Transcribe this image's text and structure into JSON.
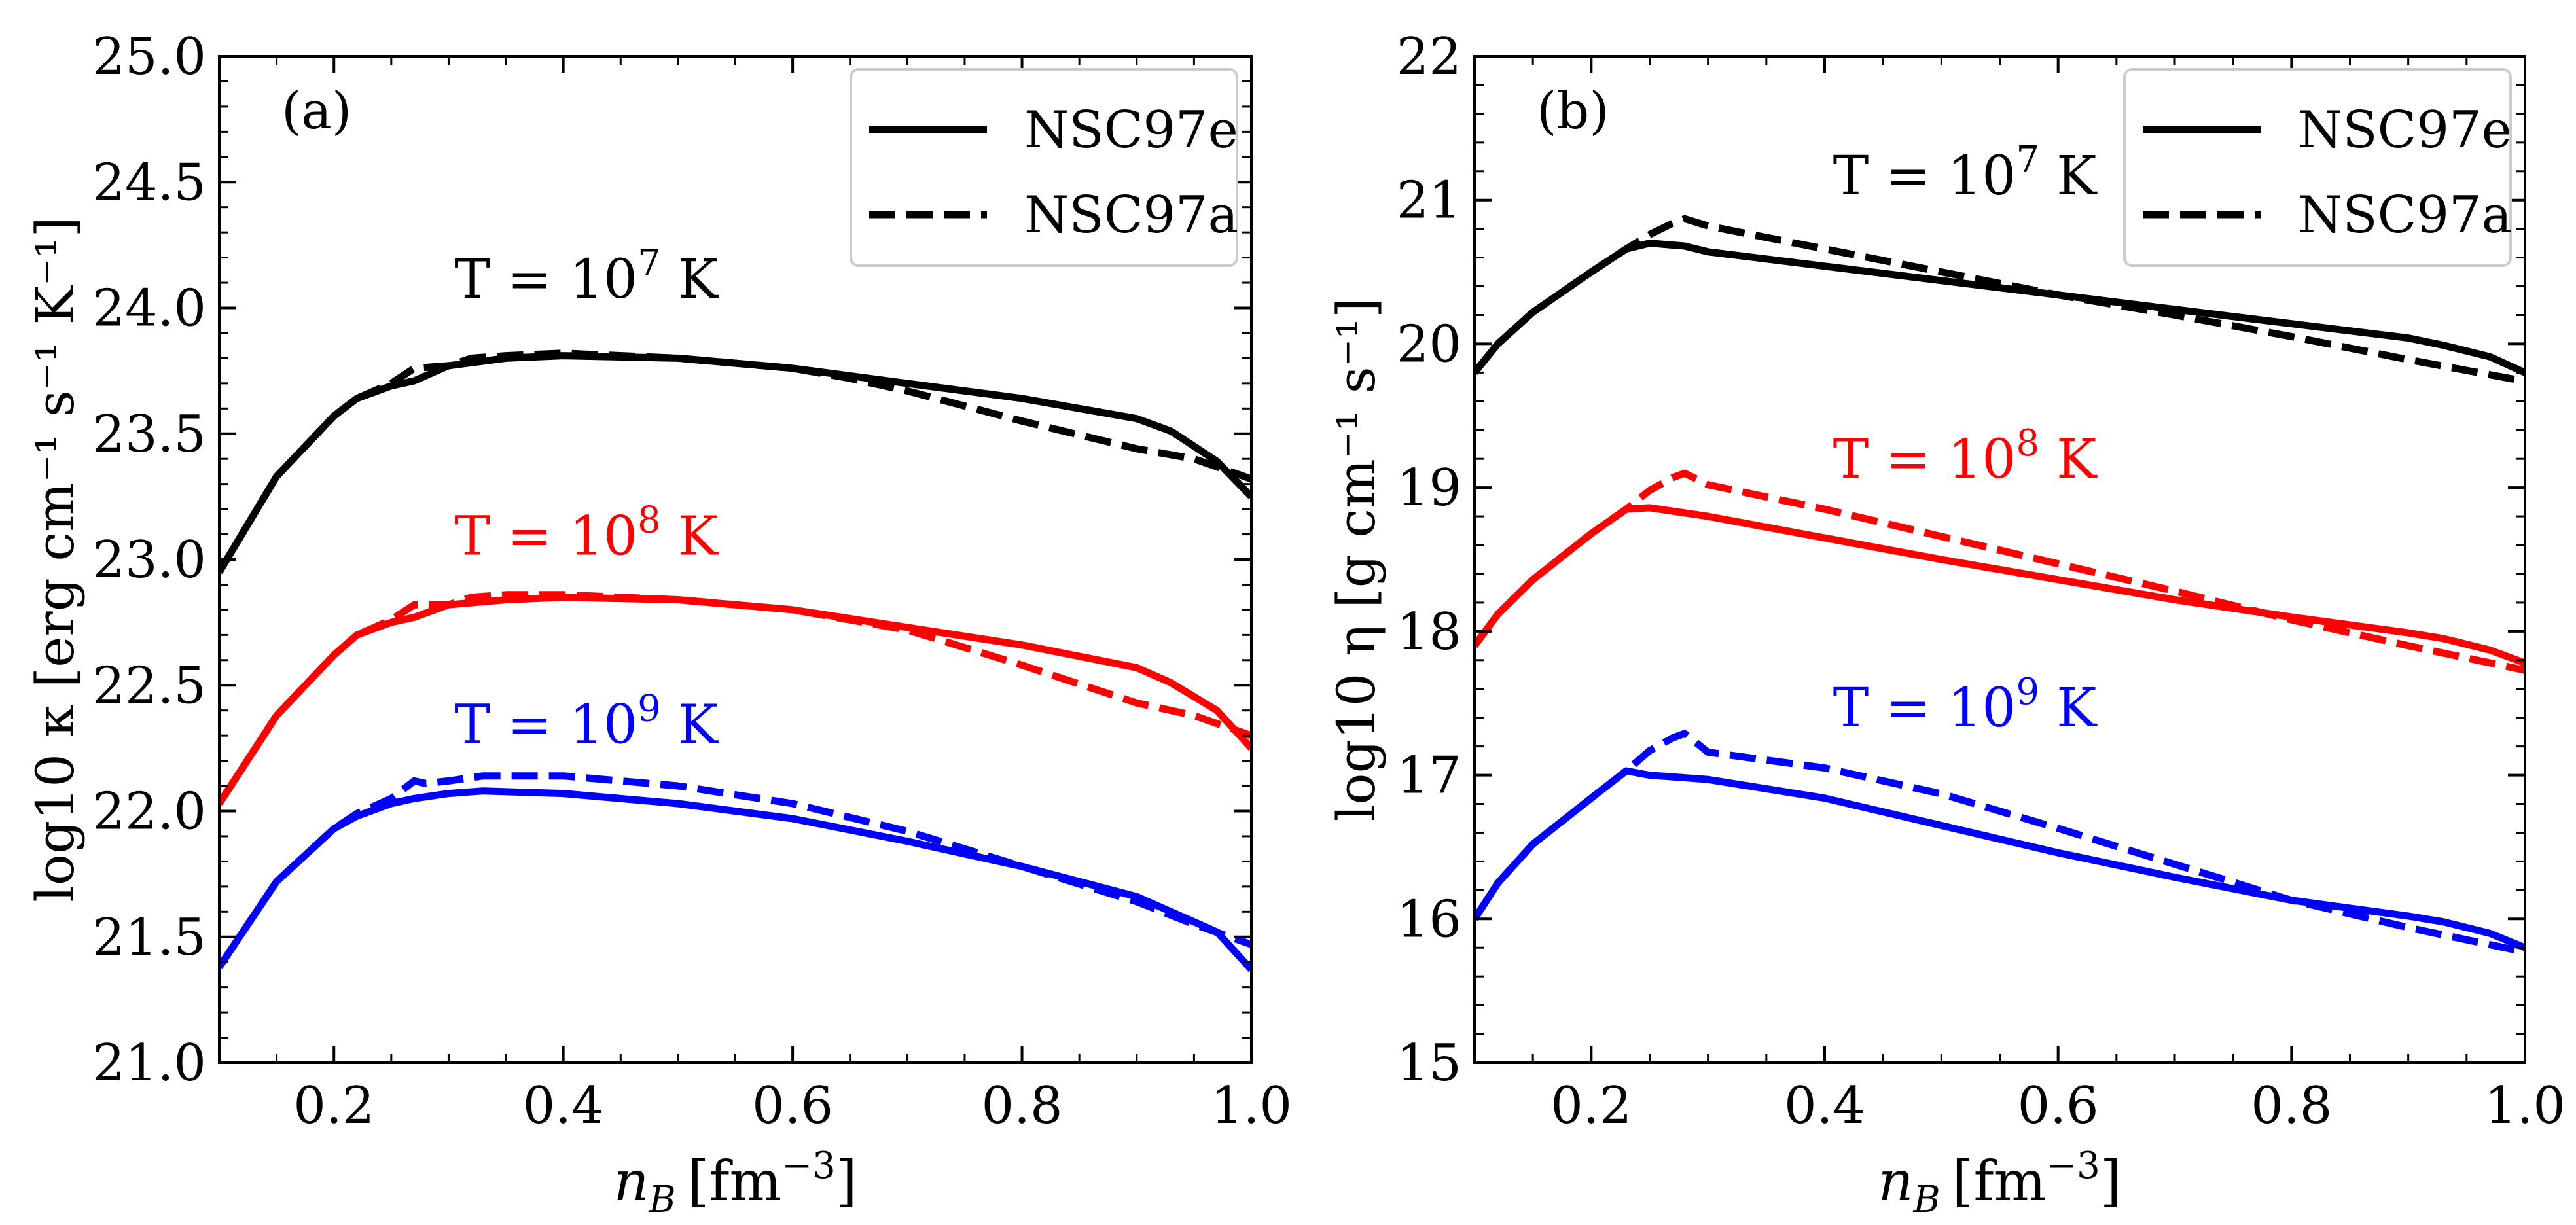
{
  "chart_data": [
    {
      "type": "line",
      "panel_label": "(a)",
      "xlabel_sym": "n",
      "xlabel_sub": "B",
      "xlabel_unit": "[fm",
      "xlabel_unit_exp": "−3",
      "xlabel_unit_close": "]",
      "ylabel": "log10 κ [erg cm⁻¹ s⁻¹ K⁻¹]",
      "xlim": [
        0.1,
        1.0
      ],
      "ylim": [
        21.0,
        25.0
      ],
      "xticks": [
        "0.2",
        "0.4",
        "0.6",
        "0.8",
        "1.0"
      ],
      "xtick_values": [
        0.2,
        0.4,
        0.6,
        0.8,
        1.0
      ],
      "yticks": [
        "21.0",
        "21.5",
        "22.0",
        "22.5",
        "23.0",
        "23.5",
        "24.0",
        "24.5",
        "25.0"
      ],
      "ytick_values": [
        21.0,
        21.5,
        22.0,
        22.5,
        23.0,
        23.5,
        24.0,
        24.5,
        25.0
      ],
      "legend": [
        "NSC97e",
        "NSC97a"
      ],
      "legend_position": "top-right",
      "annotations": [
        {
          "prefix": "T = 10",
          "exp": "7",
          "suffix": " K",
          "color": "#000000",
          "x": 0.42,
          "y": 24.04
        },
        {
          "prefix": "T = 10",
          "exp": "8",
          "suffix": " K",
          "color": "#ff0000",
          "x": 0.42,
          "y": 23.02
        },
        {
          "prefix": "T = 10",
          "exp": "9",
          "suffix": " K",
          "color": "#0000ff",
          "x": 0.42,
          "y": 22.27
        }
      ],
      "series": [
        {
          "name": "NSC97e",
          "temperature": "1e7 K",
          "color": "#000000",
          "dash": "solid",
          "x": [
            0.1,
            0.15,
            0.2,
            0.22,
            0.25,
            0.27,
            0.3,
            0.35,
            0.4,
            0.5,
            0.6,
            0.7,
            0.8,
            0.9,
            0.93,
            0.97,
            1.0
          ],
          "y": [
            22.95,
            23.33,
            23.57,
            23.64,
            23.69,
            23.71,
            23.77,
            23.8,
            23.81,
            23.8,
            23.76,
            23.7,
            23.64,
            23.56,
            23.51,
            23.39,
            23.25
          ]
        },
        {
          "name": "NSC97a",
          "temperature": "1e7 K",
          "color": "#000000",
          "dash": "dashed",
          "x": [
            0.1,
            0.15,
            0.2,
            0.22,
            0.25,
            0.27,
            0.3,
            0.32,
            0.35,
            0.4,
            0.5,
            0.6,
            0.65,
            0.7,
            0.8,
            0.9,
            0.95,
            1.0
          ],
          "y": [
            22.95,
            23.33,
            23.57,
            23.64,
            23.7,
            23.76,
            23.77,
            23.8,
            23.81,
            23.82,
            23.8,
            23.76,
            23.72,
            23.67,
            23.55,
            23.44,
            23.4,
            23.32
          ]
        },
        {
          "name": "NSC97e",
          "temperature": "1e8 K",
          "color": "#ff0000",
          "dash": "solid",
          "x": [
            0.1,
            0.15,
            0.2,
            0.22,
            0.25,
            0.27,
            0.3,
            0.35,
            0.4,
            0.5,
            0.6,
            0.7,
            0.8,
            0.9,
            0.93,
            0.97,
            1.0
          ],
          "y": [
            22.03,
            22.38,
            22.62,
            22.7,
            22.75,
            22.77,
            22.82,
            22.84,
            22.85,
            22.84,
            22.8,
            22.73,
            22.66,
            22.57,
            22.51,
            22.4,
            22.25
          ]
        },
        {
          "name": "NSC97a",
          "temperature": "1e8 K",
          "color": "#ff0000",
          "dash": "dashed",
          "x": [
            0.1,
            0.15,
            0.2,
            0.22,
            0.25,
            0.27,
            0.3,
            0.32,
            0.35,
            0.4,
            0.5,
            0.6,
            0.7,
            0.8,
            0.9,
            0.95,
            1.0
          ],
          "y": [
            22.03,
            22.38,
            22.62,
            22.7,
            22.76,
            22.82,
            22.82,
            22.85,
            22.86,
            22.86,
            22.84,
            22.8,
            22.72,
            22.58,
            22.43,
            22.38,
            22.3
          ]
        },
        {
          "name": "NSC97e",
          "temperature": "1e9 K",
          "color": "#0000ff",
          "dash": "solid",
          "x": [
            0.1,
            0.15,
            0.2,
            0.22,
            0.25,
            0.27,
            0.3,
            0.33,
            0.4,
            0.5,
            0.6,
            0.7,
            0.8,
            0.9,
            0.93,
            0.97,
            1.0
          ],
          "y": [
            21.38,
            21.72,
            21.93,
            21.98,
            22.03,
            22.05,
            22.07,
            22.08,
            22.07,
            22.03,
            21.97,
            21.88,
            21.78,
            21.66,
            21.6,
            21.52,
            21.37
          ]
        },
        {
          "name": "NSC97a",
          "temperature": "1e9 K",
          "color": "#0000ff",
          "dash": "dashed",
          "x": [
            0.1,
            0.15,
            0.2,
            0.22,
            0.25,
            0.27,
            0.28,
            0.3,
            0.33,
            0.4,
            0.5,
            0.6,
            0.7,
            0.8,
            0.9,
            0.95,
            1.0
          ],
          "y": [
            21.38,
            21.72,
            21.93,
            21.99,
            22.05,
            22.12,
            22.11,
            22.12,
            22.14,
            22.14,
            22.1,
            22.03,
            21.92,
            21.78,
            21.64,
            21.55,
            21.47
          ]
        }
      ]
    },
    {
      "type": "line",
      "panel_label": "(b)",
      "xlabel_sym": "n",
      "xlabel_sub": "B",
      "xlabel_unit": "[fm",
      "xlabel_unit_exp": "−3",
      "xlabel_unit_close": "]",
      "ylabel": "log10 η [g cm⁻¹ s⁻¹]",
      "xlim": [
        0.1,
        1.0
      ],
      "ylim": [
        15.0,
        22.0
      ],
      "xticks": [
        "0.2",
        "0.4",
        "0.6",
        "0.8",
        "1.0"
      ],
      "xtick_values": [
        0.2,
        0.4,
        0.6,
        0.8,
        1.0
      ],
      "yticks": [
        "15",
        "16",
        "17",
        "18",
        "19",
        "20",
        "21",
        "22"
      ],
      "ytick_values": [
        15,
        16,
        17,
        18,
        19,
        20,
        21,
        22
      ],
      "legend": [
        "NSC97e",
        "NSC97a"
      ],
      "legend_position": "top-right",
      "annotations": [
        {
          "prefix": "T = 10",
          "exp": "7",
          "suffix": " K",
          "color": "#000000",
          "x": 0.52,
          "y": 21.04
        },
        {
          "prefix": "T = 10",
          "exp": "8",
          "suffix": " K",
          "color": "#ff0000",
          "x": 0.52,
          "y": 19.07
        },
        {
          "prefix": "T = 10",
          "exp": "9",
          "suffix": " K",
          "color": "#0000ff",
          "x": 0.52,
          "y": 17.34
        }
      ],
      "series": [
        {
          "name": "NSC97e",
          "temperature": "1e7 K",
          "color": "#000000",
          "dash": "solid",
          "x": [
            0.1,
            0.12,
            0.15,
            0.2,
            0.23,
            0.25,
            0.28,
            0.3,
            0.4,
            0.5,
            0.6,
            0.7,
            0.8,
            0.9,
            0.93,
            0.97,
            1.0
          ],
          "y": [
            19.8,
            20.0,
            20.22,
            20.5,
            20.66,
            20.7,
            20.68,
            20.64,
            20.54,
            20.44,
            20.34,
            20.24,
            20.14,
            20.04,
            19.99,
            19.91,
            19.8
          ]
        },
        {
          "name": "NSC97a",
          "temperature": "1e7 K",
          "color": "#000000",
          "dash": "dashed",
          "x": [
            0.1,
            0.12,
            0.15,
            0.2,
            0.23,
            0.25,
            0.27,
            0.28,
            0.3,
            0.4,
            0.5,
            0.6,
            0.7,
            0.8,
            0.9,
            1.0
          ],
          "y": [
            19.8,
            20.0,
            20.22,
            20.5,
            20.66,
            20.76,
            20.84,
            20.87,
            20.82,
            20.66,
            20.5,
            20.34,
            20.2,
            20.05,
            19.89,
            19.74
          ]
        },
        {
          "name": "NSC97e",
          "temperature": "1e8 K",
          "color": "#ff0000",
          "dash": "solid",
          "x": [
            0.1,
            0.12,
            0.15,
            0.2,
            0.23,
            0.25,
            0.3,
            0.4,
            0.5,
            0.6,
            0.7,
            0.8,
            0.9,
            0.93,
            0.97,
            1.0
          ],
          "y": [
            17.9,
            18.12,
            18.36,
            18.68,
            18.85,
            18.86,
            18.8,
            18.65,
            18.5,
            18.36,
            18.22,
            18.1,
            17.99,
            17.95,
            17.87,
            17.78
          ]
        },
        {
          "name": "NSC97a",
          "temperature": "1e8 K",
          "color": "#ff0000",
          "dash": "dashed",
          "x": [
            0.1,
            0.12,
            0.15,
            0.2,
            0.23,
            0.25,
            0.27,
            0.28,
            0.3,
            0.4,
            0.5,
            0.6,
            0.7,
            0.8,
            0.9,
            1.0
          ],
          "y": [
            17.9,
            18.12,
            18.36,
            18.68,
            18.85,
            18.98,
            19.07,
            19.1,
            19.02,
            18.85,
            18.66,
            18.47,
            18.28,
            18.08,
            17.9,
            17.73
          ]
        },
        {
          "name": "NSC97e",
          "temperature": "1e9 K",
          "color": "#0000ff",
          "dash": "solid",
          "x": [
            0.1,
            0.12,
            0.15,
            0.2,
            0.23,
            0.25,
            0.3,
            0.4,
            0.5,
            0.6,
            0.7,
            0.8,
            0.9,
            0.93,
            0.97,
            1.0
          ],
          "y": [
            16.0,
            16.25,
            16.52,
            16.84,
            17.03,
            17.0,
            16.97,
            16.84,
            16.65,
            16.46,
            16.29,
            16.13,
            16.02,
            15.98,
            15.9,
            15.8
          ]
        },
        {
          "name": "NSC97a",
          "temperature": "1e9 K",
          "color": "#0000ff",
          "dash": "dashed",
          "x": [
            0.1,
            0.12,
            0.15,
            0.2,
            0.23,
            0.25,
            0.27,
            0.28,
            0.3,
            0.4,
            0.5,
            0.6,
            0.7,
            0.8,
            0.9,
            1.0
          ],
          "y": [
            16.0,
            16.25,
            16.52,
            16.84,
            17.03,
            17.17,
            17.26,
            17.29,
            17.16,
            17.05,
            16.87,
            16.63,
            16.38,
            16.13,
            15.94,
            15.77
          ]
        }
      ]
    }
  ]
}
